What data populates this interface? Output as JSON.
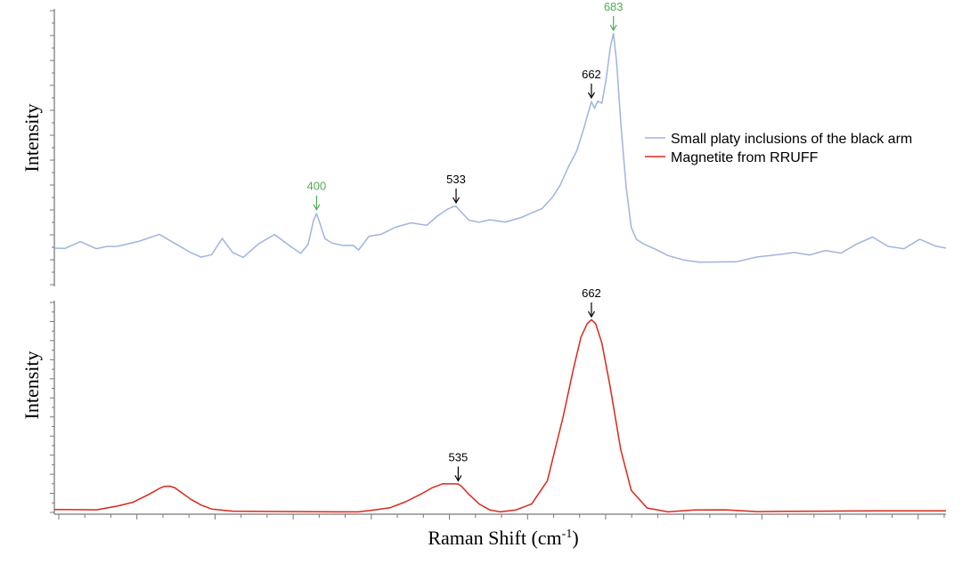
{
  "chart_data": [
    {
      "type": "line",
      "panel": "top",
      "ylabel": "Intensity",
      "xlim": [
        150,
        1000
      ],
      "series": [
        {
          "name": "Small platy inclusions of the black arm",
          "color": "#9fb4e0",
          "x": [
            150,
            160,
            175,
            190,
            200,
            210,
            230,
            250,
            265,
            280,
            290,
            300,
            310,
            320,
            330,
            345,
            360,
            375,
            385,
            392,
            397,
            400,
            403,
            408,
            415,
            425,
            435,
            440,
            450,
            462,
            475,
            490,
            505,
            515,
            525,
            530,
            533,
            537,
            545,
            555,
            565,
            580,
            595,
            605,
            615,
            625,
            632,
            640,
            648,
            655,
            660,
            662,
            665,
            668,
            672,
            676,
            680,
            683,
            686,
            690,
            695,
            700,
            705,
            712,
            722,
            735,
            750,
            765,
            780,
            800,
            820,
            840,
            855,
            870,
            885,
            900,
            915,
            930,
            945,
            960,
            975,
            990,
            1000
          ],
          "y": [
            0.08,
            0.08,
            0.11,
            0.08,
            0.09,
            0.09,
            0.11,
            0.14,
            0.1,
            0.06,
            0.04,
            0.05,
            0.12,
            0.06,
            0.04,
            0.1,
            0.14,
            0.09,
            0.06,
            0.1,
            0.2,
            0.23,
            0.19,
            0.12,
            0.1,
            0.09,
            0.09,
            0.07,
            0.13,
            0.14,
            0.17,
            0.19,
            0.18,
            0.22,
            0.25,
            0.26,
            0.26,
            0.24,
            0.2,
            0.19,
            0.2,
            0.19,
            0.21,
            0.23,
            0.25,
            0.3,
            0.35,
            0.43,
            0.5,
            0.6,
            0.68,
            0.71,
            0.68,
            0.71,
            0.7,
            0.8,
            0.94,
            1.0,
            0.88,
            0.62,
            0.35,
            0.17,
            0.12,
            0.1,
            0.08,
            0.05,
            0.03,
            0.02,
            0.02,
            0.02,
            0.04,
            0.05,
            0.06,
            0.05,
            0.07,
            0.06,
            0.1,
            0.13,
            0.09,
            0.08,
            0.12,
            0.09,
            0.08
          ]
        }
      ],
      "annotations": [
        {
          "label": "400",
          "x": 400,
          "y": 0.23,
          "color": "#4caf50"
        },
        {
          "label": "533",
          "x": 533,
          "y": 0.26,
          "color": "#000000"
        },
        {
          "label": "662",
          "x": 662,
          "y": 0.71,
          "color": "#000000"
        },
        {
          "label": "683",
          "x": 683,
          "y": 1.0,
          "color": "#4caf50"
        }
      ],
      "legend_position": "right"
    },
    {
      "type": "line",
      "panel": "bottom",
      "xlabel": "Raman Shift (cm-1)",
      "ylabel": "Intensity",
      "xlim": [
        150,
        1000
      ],
      "series": [
        {
          "name": "Magnetite from RRUFF",
          "color": "#d9281a",
          "x": [
            150,
            170,
            190,
            210,
            225,
            240,
            250,
            255,
            260,
            265,
            270,
            280,
            290,
            300,
            320,
            350,
            380,
            400,
            420,
            440,
            455,
            470,
            485,
            500,
            510,
            520,
            528,
            532,
            535,
            538,
            545,
            555,
            565,
            575,
            590,
            605,
            620,
            635,
            645,
            652,
            658,
            662,
            666,
            672,
            680,
            690,
            700,
            715,
            735,
            760,
            790,
            820,
            850,
            880,
            910,
            940,
            970,
            1000
          ],
          "y": [
            0.02,
            0.02,
            0.02,
            0.04,
            0.06,
            0.1,
            0.13,
            0.14,
            0.14,
            0.13,
            0.11,
            0.07,
            0.04,
            0.02,
            0.01,
            0.01,
            0.01,
            0.01,
            0.01,
            0.01,
            0.02,
            0.03,
            0.06,
            0.1,
            0.13,
            0.15,
            0.15,
            0.15,
            0.15,
            0.14,
            0.1,
            0.05,
            0.02,
            0.01,
            0.02,
            0.05,
            0.17,
            0.5,
            0.75,
            0.91,
            0.98,
            1.0,
            0.98,
            0.88,
            0.65,
            0.33,
            0.12,
            0.03,
            0.01,
            0.02,
            0.02,
            0.01,
            0.01,
            0.01,
            0.01,
            0.01,
            0.01,
            0.01
          ]
        }
      ],
      "annotations": [
        {
          "label": "535",
          "x": 535,
          "y": 0.15,
          "color": "#000000"
        },
        {
          "label": "662",
          "x": 662,
          "y": 1.0,
          "color": "#000000"
        }
      ],
      "legend_position": "right"
    }
  ],
  "labels": {
    "top_ylabel": "Intensity",
    "bottom_ylabel": "Intensity",
    "xlabel_main": "Raman Shift (cm",
    "xlabel_sup": "-1",
    "xlabel_end": ")"
  },
  "legend": [
    {
      "label": "Small platy inclusions of the black arm",
      "color": "#9fb4e0"
    },
    {
      "label": "Magnetite from RRUFF",
      "color": "#d9281a"
    }
  ]
}
